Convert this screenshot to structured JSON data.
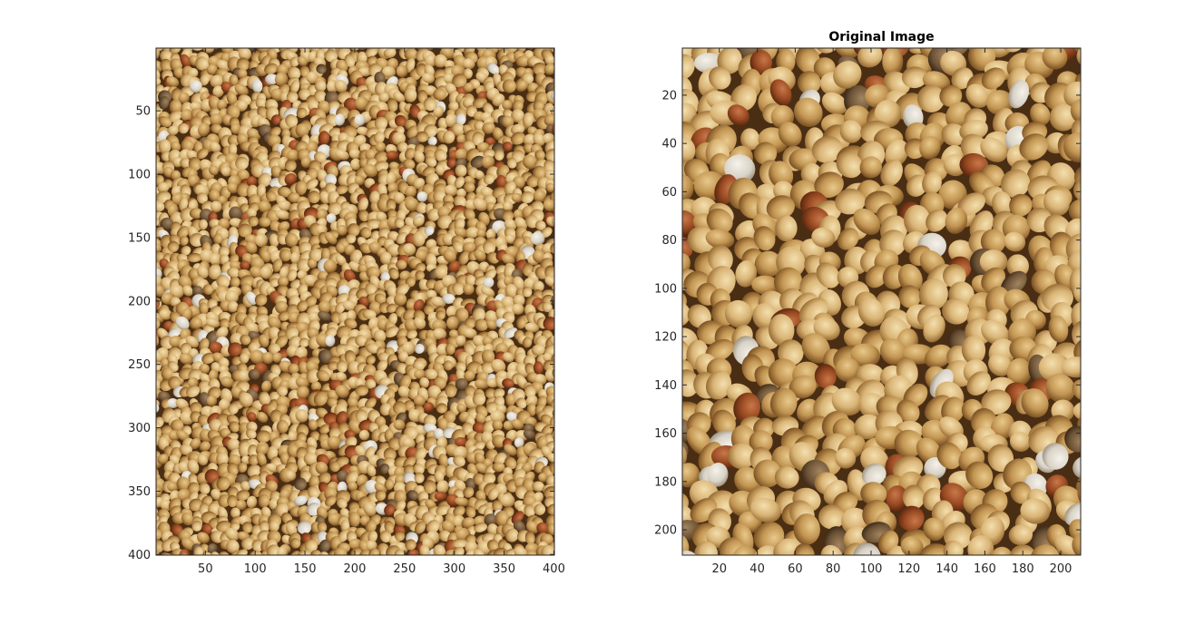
{
  "figure": {
    "background": "#ffffff",
    "colors": {
      "axis": "#262626",
      "grain_light": "#e4c48c",
      "grain_mid": "#c9a05a",
      "grain_dark": "#7a4d24",
      "grain_red": "#9a4a22",
      "background_dark": "#4a2e14"
    }
  },
  "chart_data": [
    {
      "type": "image",
      "title": "",
      "xlabel": "",
      "ylabel": "",
      "content": "millet seeds (full image)",
      "xlim": [
        1,
        400
      ],
      "ylim": [
        1,
        400
      ],
      "y_reversed": true,
      "grid": false,
      "xticks": [
        50,
        100,
        150,
        200,
        250,
        300,
        350,
        400
      ],
      "yticks": [
        50,
        100,
        150,
        200,
        250,
        300,
        350,
        400
      ]
    },
    {
      "type": "image",
      "title": "Original Image",
      "xlabel": "",
      "ylabel": "",
      "content": "millet seeds (zoomed crop)",
      "xlim": [
        1,
        210
      ],
      "ylim": [
        1,
        210
      ],
      "y_reversed": true,
      "grid": false,
      "xticks": [
        20,
        40,
        60,
        80,
        100,
        120,
        140,
        160,
        180,
        200
      ],
      "yticks": [
        20,
        40,
        60,
        80,
        100,
        120,
        140,
        160,
        180,
        200
      ]
    }
  ]
}
